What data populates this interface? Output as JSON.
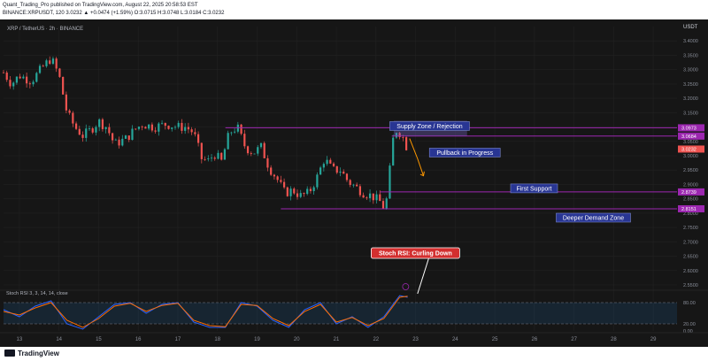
{
  "header": {
    "line1": "Quant_Trading_Pro published on TradingView.com, August 22, 2025 20:58:53 EST",
    "line2": "BINANCE:XRPUSDT, 120  3.0232  ▲ +0.0474 (+1.59%)  O:3.0715  H:3.0748  L:3.0184  C:3.0232"
  },
  "footer": {
    "brand": "TradingView"
  },
  "colors": {
    "background": "#161616",
    "up": "#26a69a",
    "down": "#ef5350",
    "zone": "#9c27b0",
    "stoch_k": "#2962ff",
    "stoch_d": "#ff6d00",
    "callout": "#d32f2f"
  },
  "chart_data": [
    {
      "type": "candlestick",
      "symbol": "XRP / TetherUS · 2h · BINANCE",
      "yaxis_label": "USDT",
      "ylim": [
        2.55,
        3.45
      ],
      "xlim": [
        12.6,
        29.6
      ],
      "x_ticks": [
        "13",
        "14",
        "15",
        "16",
        "17",
        "18",
        "19",
        "20",
        "21",
        "22",
        "23",
        "24",
        "25",
        "26",
        "27",
        "28",
        "29"
      ],
      "y_ticks": [
        "3.4000",
        "3.3500",
        "3.3000",
        "3.2500",
        "3.2000",
        "3.1500",
        "3.1000",
        "3.0500",
        "3.0000",
        "2.9500",
        "2.9000",
        "2.8500",
        "2.8000",
        "2.7500",
        "2.7000",
        "2.6500",
        "2.6000",
        "2.5500"
      ],
      "price_badges": [
        {
          "label": "3.0973",
          "value": 3.0973,
          "color": "#9c27b0"
        },
        {
          "label": "3.0684",
          "value": 3.0684,
          "color": "#9c27b0"
        },
        {
          "label": "3.0232",
          "value": 3.0232,
          "color": "#ef5350"
        },
        {
          "label": "2.8739",
          "value": 2.8739,
          "color": "#9c27b0"
        },
        {
          "label": "2.8151",
          "value": 2.8151,
          "color": "#9c27b0"
        }
      ],
      "levels": [
        {
          "name": "Supply Zone / Rejection",
          "value": 3.0973,
          "from": 18.2,
          "to": 29.6
        },
        {
          "name": "Supply Zone lower",
          "value": 3.0684,
          "from": 22.4,
          "to": 29.6
        },
        {
          "name": "First Support",
          "value": 2.8739,
          "from": 22.1,
          "to": 29.6
        },
        {
          "name": "Deeper Demand Zone",
          "value": 2.8151,
          "from": 19.6,
          "to": 29.6
        }
      ],
      "annotations": [
        "Supply Zone / Rejection",
        "Pullback in Progress",
        "First Support",
        "Deeper Demand Zone"
      ],
      "close_points": [
        [
          12.6,
          3.29
        ],
        [
          12.8,
          3.25
        ],
        [
          13.0,
          3.28
        ],
        [
          13.3,
          3.26
        ],
        [
          13.6,
          3.31
        ],
        [
          13.8,
          3.34
        ],
        [
          14.0,
          3.28
        ],
        [
          14.2,
          3.15
        ],
        [
          14.4,
          3.1
        ],
        [
          14.6,
          3.07
        ],
        [
          14.8,
          3.09
        ],
        [
          15.0,
          3.12
        ],
        [
          15.2,
          3.1
        ],
        [
          15.4,
          3.04
        ],
        [
          15.7,
          3.06
        ],
        [
          15.9,
          3.09
        ],
        [
          16.1,
          3.11
        ],
        [
          16.4,
          3.1
        ],
        [
          16.7,
          3.11
        ],
        [
          17.0,
          3.1
        ],
        [
          17.2,
          3.1
        ],
        [
          17.4,
          3.08
        ],
        [
          17.6,
          2.99
        ],
        [
          17.8,
          2.98
        ],
        [
          17.9,
          3.01
        ],
        [
          18.1,
          2.98
        ],
        [
          18.3,
          3.08
        ],
        [
          18.5,
          3.1
        ],
        [
          18.7,
          3.03
        ],
        [
          18.9,
          3.01
        ],
        [
          19.1,
          3.03
        ],
        [
          19.3,
          2.96
        ],
        [
          19.5,
          2.92
        ],
        [
          19.7,
          2.87
        ],
        [
          19.9,
          2.88
        ],
        [
          20.1,
          2.86
        ],
        [
          20.3,
          2.87
        ],
        [
          20.5,
          2.92
        ],
        [
          20.7,
          2.99
        ],
        [
          20.9,
          2.95
        ],
        [
          21.1,
          2.95
        ],
        [
          21.3,
          2.91
        ],
        [
          21.5,
          2.89
        ],
        [
          21.7,
          2.87
        ],
        [
          21.9,
          2.86
        ],
        [
          22.1,
          2.84
        ],
        [
          22.2,
          2.82
        ],
        [
          22.3,
          2.86
        ],
        [
          22.4,
          3.04
        ],
        [
          22.5,
          3.09
        ],
        [
          22.6,
          3.08
        ],
        [
          22.7,
          3.06
        ],
        [
          22.8,
          3.02
        ]
      ]
    },
    {
      "type": "line",
      "name": "Stoch RSI",
      "legend": "Stoch RSI  3, 3, 14, 14, close",
      "ylim": [
        0,
        100
      ],
      "y_ticks": [
        "80.00",
        "20.00",
        "0.00"
      ],
      "bands": [
        80,
        20
      ],
      "callout": "Stoch RSI: Curling Down",
      "series": [
        {
          "name": "K",
          "values": [
            [
              12.6,
              60
            ],
            [
              13.0,
              40
            ],
            [
              13.4,
              70
            ],
            [
              13.8,
              85
            ],
            [
              14.2,
              20
            ],
            [
              14.6,
              5
            ],
            [
              15.0,
              40
            ],
            [
              15.4,
              75
            ],
            [
              15.8,
              80
            ],
            [
              16.2,
              50
            ],
            [
              16.6,
              75
            ],
            [
              17.0,
              80
            ],
            [
              17.4,
              25
            ],
            [
              17.8,
              10
            ],
            [
              18.2,
              10
            ],
            [
              18.6,
              80
            ],
            [
              19.0,
              70
            ],
            [
              19.4,
              30
            ],
            [
              19.8,
              10
            ],
            [
              20.2,
              60
            ],
            [
              20.6,
              80
            ],
            [
              21.0,
              20
            ],
            [
              21.4,
              40
            ],
            [
              21.8,
              10
            ],
            [
              22.2,
              40
            ],
            [
              22.6,
              100
            ],
            [
              22.8,
              95
            ]
          ]
        },
        {
          "name": "D",
          "values": [
            [
              12.6,
              55
            ],
            [
              13.0,
              45
            ],
            [
              13.4,
              65
            ],
            [
              13.8,
              80
            ],
            [
              14.2,
              30
            ],
            [
              14.6,
              10
            ],
            [
              15.0,
              35
            ],
            [
              15.4,
              70
            ],
            [
              15.8,
              78
            ],
            [
              16.2,
              55
            ],
            [
              16.6,
              72
            ],
            [
              17.0,
              78
            ],
            [
              17.4,
              30
            ],
            [
              17.8,
              15
            ],
            [
              18.2,
              12
            ],
            [
              18.6,
              75
            ],
            [
              19.0,
              72
            ],
            [
              19.4,
              35
            ],
            [
              19.8,
              15
            ],
            [
              20.2,
              55
            ],
            [
              20.6,
              75
            ],
            [
              21.0,
              25
            ],
            [
              21.4,
              38
            ],
            [
              21.8,
              15
            ],
            [
              22.2,
              35
            ],
            [
              22.6,
              95
            ],
            [
              22.8,
              98
            ]
          ]
        }
      ]
    }
  ]
}
